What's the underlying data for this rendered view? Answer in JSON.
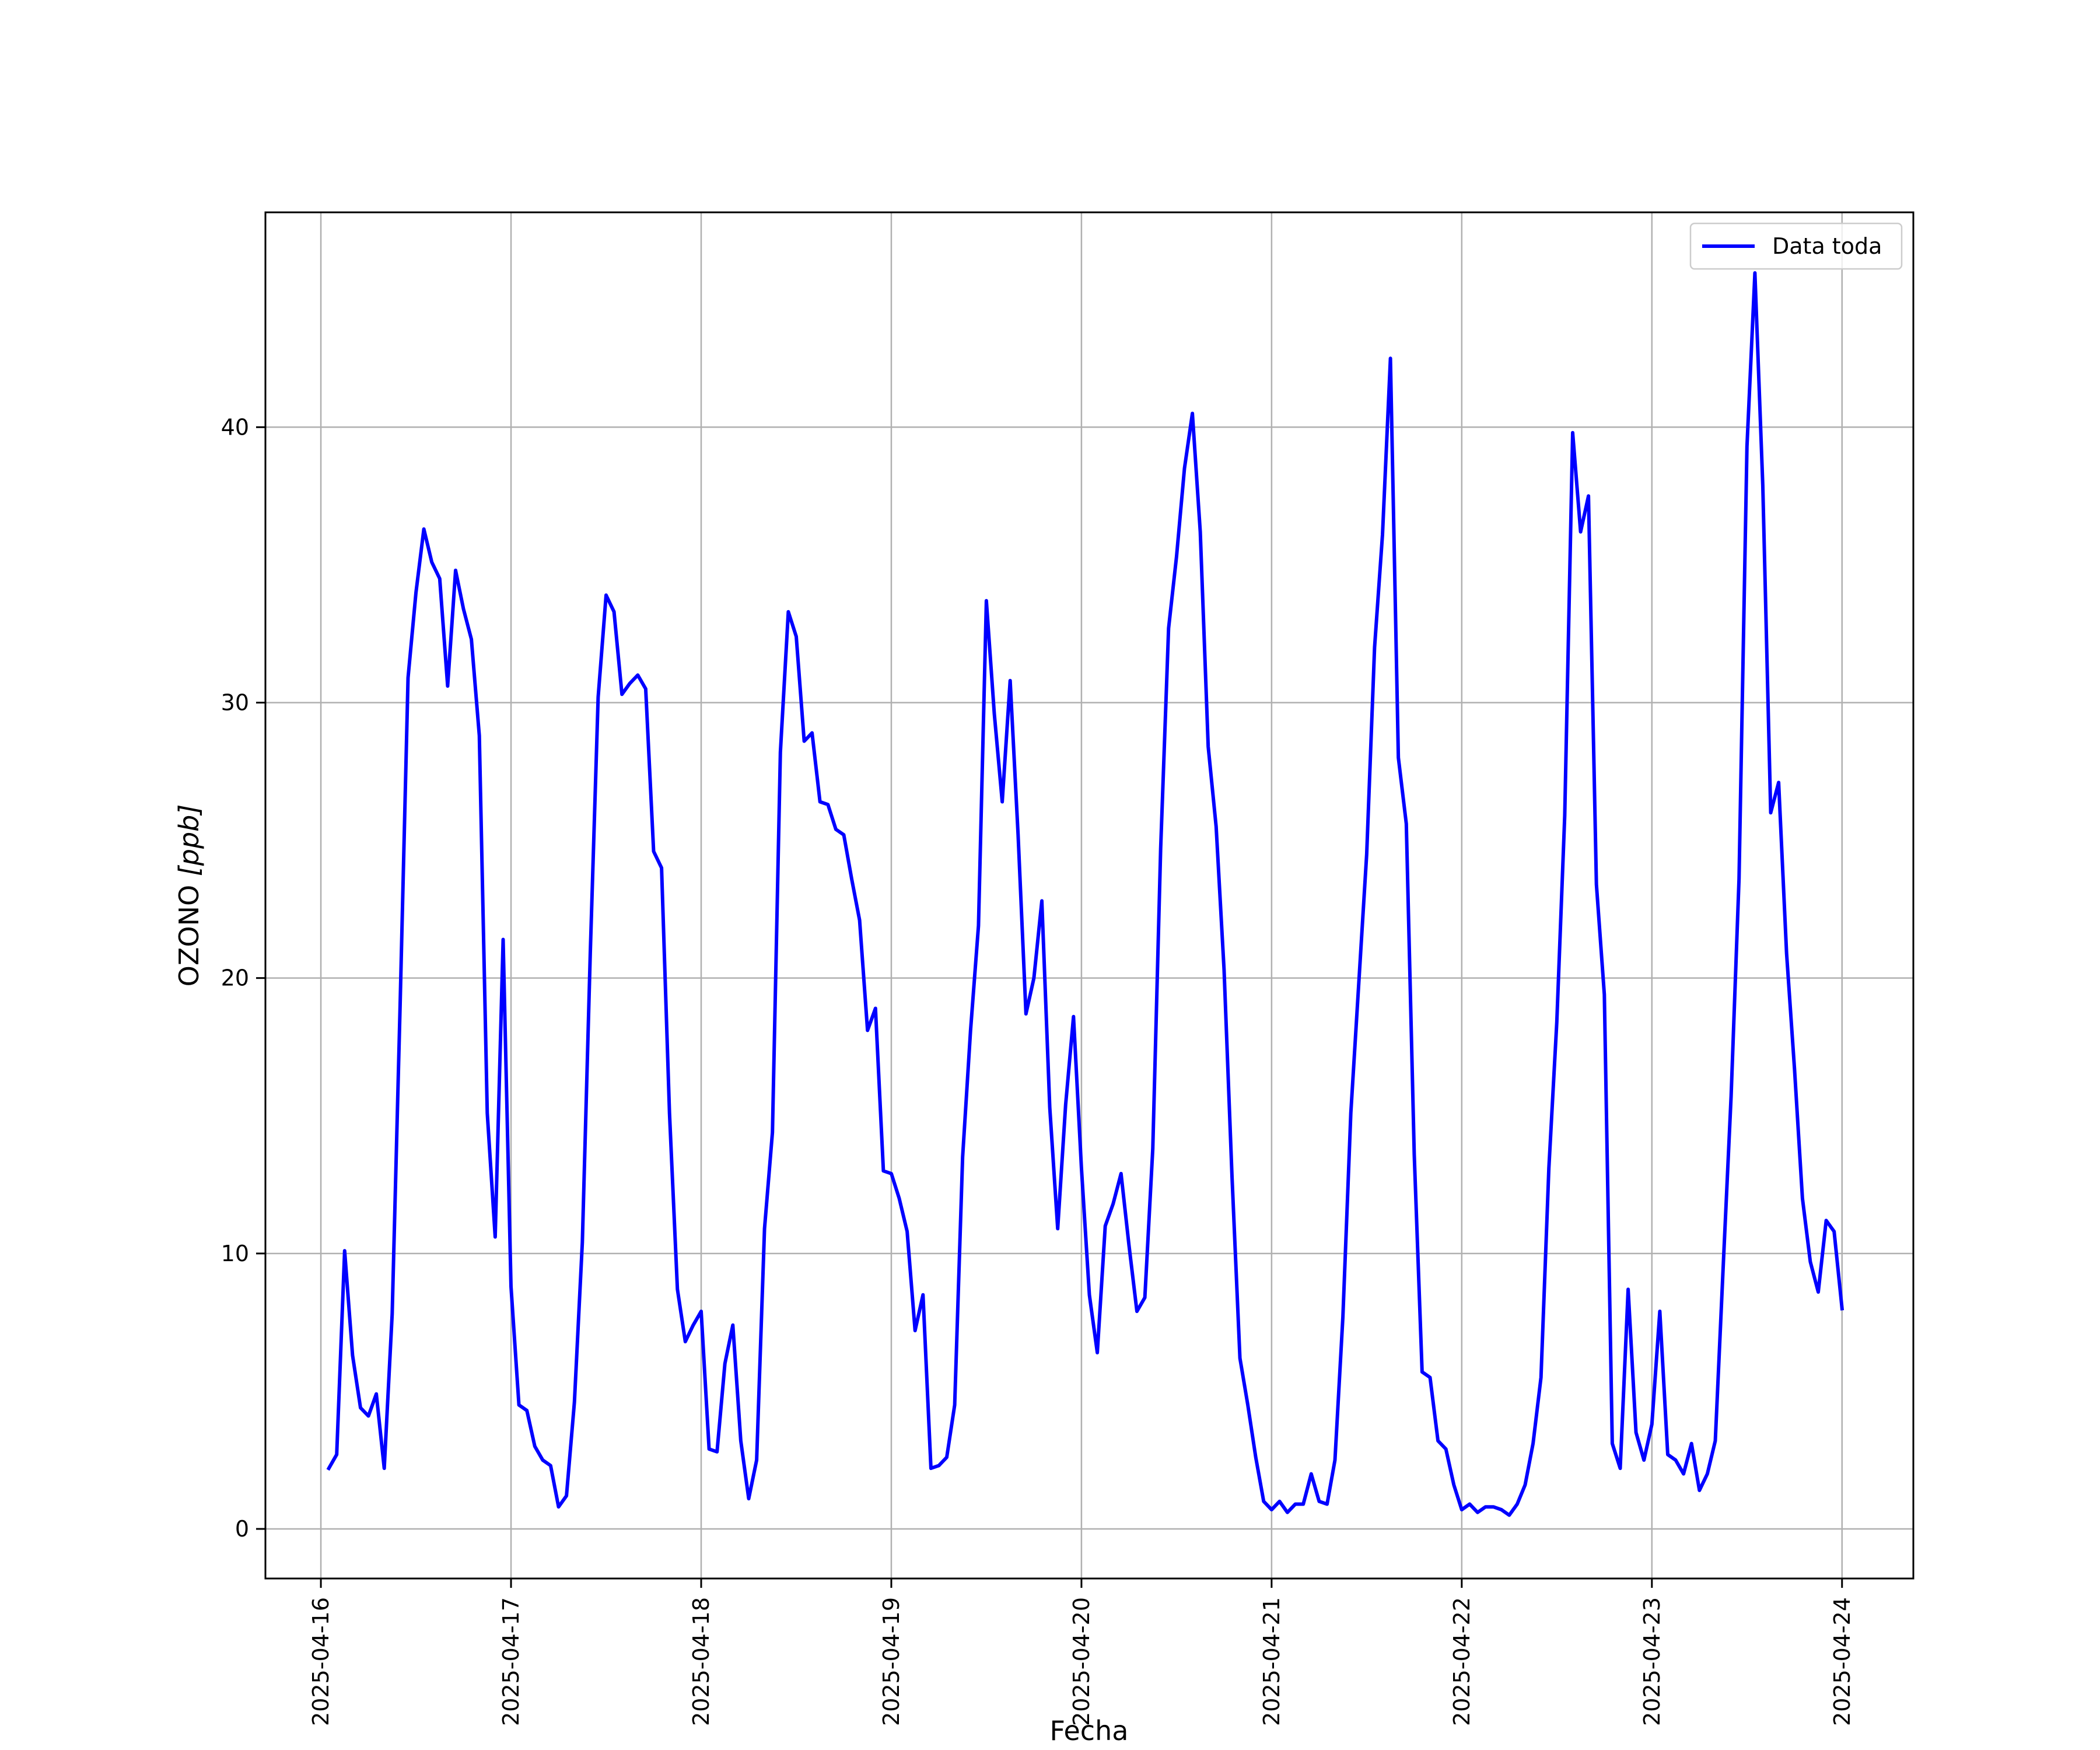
{
  "chart_data": {
    "type": "line",
    "xlabel": "Fecha",
    "ylabel": "OZONO [ppb]",
    "ylabel_parts": {
      "main": "OZONO ",
      "unit": "[ppb]"
    },
    "legend": {
      "placement": "top-right",
      "entries": [
        "Data toda"
      ]
    },
    "grid": true,
    "ylim": [
      -1.8,
      47.8
    ],
    "xlim": [
      "2025-04-15T17:00",
      "2025-04-24T09:00"
    ],
    "yticks": [
      0,
      10,
      20,
      30,
      40
    ],
    "xticks": [
      "2025-04-16",
      "2025-04-17",
      "2025-04-18",
      "2025-04-19",
      "2025-04-20",
      "2025-04-21",
      "2025-04-22",
      "2025-04-23",
      "2025-04-24"
    ],
    "colors": {
      "series": "#0000ff",
      "grid": "#b0b0b0"
    },
    "series": [
      {
        "name": "Data toda",
        "start": "2025-04-16T01:00",
        "interval_hours": 1,
        "values": [
          2.2,
          2.7,
          10.1,
          6.3,
          4.4,
          4.1,
          4.9,
          2.2,
          7.8,
          19.0,
          30.9,
          34.0,
          36.3,
          35.1,
          34.5,
          30.6,
          34.8,
          33.4,
          32.3,
          28.8,
          15.1,
          10.6,
          21.4,
          8.8,
          4.5,
          4.3,
          3.0,
          2.5,
          2.3,
          0.8,
          1.2,
          4.6,
          10.4,
          20.9,
          30.2,
          33.9,
          33.3,
          30.3,
          30.7,
          31.0,
          30.5,
          24.6,
          24.0,
          15.1,
          8.7,
          6.8,
          7.4,
          7.9,
          2.9,
          2.8,
          6.0,
          7.4,
          3.2,
          1.1,
          2.5,
          10.9,
          14.4,
          28.2,
          33.3,
          32.4,
          28.6,
          28.9,
          26.4,
          26.3,
          25.4,
          25.2,
          23.6,
          22.1,
          18.1,
          18.9,
          13.0,
          12.9,
          12.0,
          10.8,
          7.2,
          8.5,
          2.2,
          2.3,
          2.6,
          4.5,
          13.5,
          18.1,
          21.9,
          33.7,
          29.6,
          26.4,
          30.8,
          25.2,
          18.7,
          20.0,
          22.8,
          15.3,
          10.9,
          15.4,
          18.6,
          13.1,
          8.5,
          6.4,
          11.0,
          11.8,
          12.9,
          10.3,
          7.9,
          8.4,
          13.8,
          24.7,
          32.7,
          35.3,
          38.5,
          40.5,
          36.2,
          28.4,
          25.5,
          20.3,
          12.8,
          6.2,
          4.5,
          2.6,
          1.0,
          0.7,
          1.0,
          0.6,
          0.9,
          0.9,
          2.0,
          1.0,
          0.9,
          2.5,
          7.7,
          15.1,
          19.8,
          24.5,
          32.0,
          36.1,
          42.5,
          28.0,
          25.6,
          13.6,
          5.7,
          5.5,
          3.2,
          2.9,
          1.6,
          0.7,
          0.9,
          0.6,
          0.8,
          0.8,
          0.7,
          0.5,
          0.9,
          1.6,
          3.1,
          5.5,
          13.1,
          18.4,
          25.9,
          39.8,
          36.2,
          37.5,
          23.4,
          19.4,
          3.1,
          2.2,
          8.7,
          3.5,
          2.5,
          3.8,
          7.9,
          2.7,
          2.5,
          2.0,
          3.1,
          1.4,
          2.0,
          3.2,
          9.5,
          15.7,
          23.6,
          39.3,
          45.6,
          37.9,
          26.0,
          27.1,
          20.9,
          16.7,
          12.0,
          9.7,
          8.6,
          11.2,
          10.8,
          8.0
        ]
      }
    ]
  }
}
